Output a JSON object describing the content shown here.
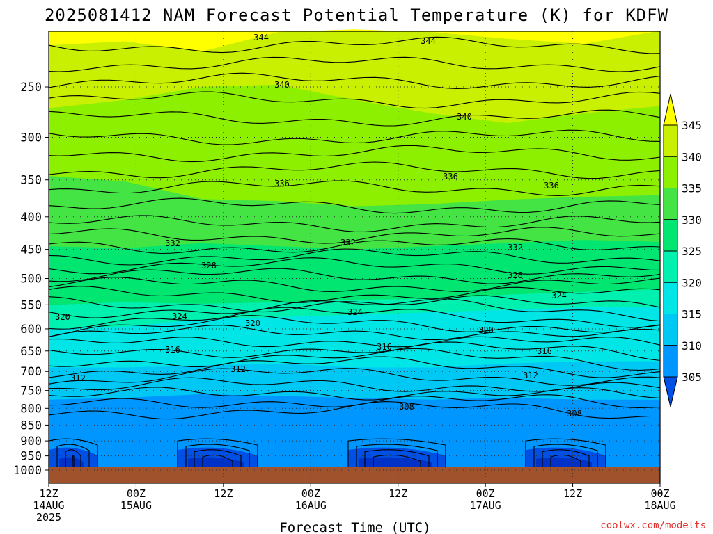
{
  "title": "2025081412 NAM Forecast Potential Temperature (K) for KDFW",
  "credit": "coolwx.com/modelts",
  "chart_data": {
    "type": "heatmap",
    "title": "2025081412 NAM Forecast Potential Temperature (K) for KDFW",
    "xlabel": "Forecast Time (UTC)",
    "ylabel": "",
    "y_axis": {
      "scale": "log-pressure",
      "unit": "hPa",
      "range": [
        1025,
        200
      ],
      "ticks": [
        250,
        300,
        350,
        400,
        450,
        500,
        550,
        600,
        650,
        700,
        750,
        800,
        850,
        900,
        950,
        1000
      ]
    },
    "x_axis": {
      "ticks": [
        {
          "line1": "12Z",
          "line2": "14AUG",
          "line3": "2025"
        },
        {
          "line1": "00Z",
          "line2": "15AUG",
          "line3": ""
        },
        {
          "line1": "12Z",
          "line2": "",
          "line3": ""
        },
        {
          "line1": "00Z",
          "line2": "16AUG",
          "line3": ""
        },
        {
          "line1": "12Z",
          "line2": "",
          "line3": ""
        },
        {
          "line1": "00Z",
          "line2": "17AUG",
          "line3": ""
        },
        {
          "line1": "12Z",
          "line2": "",
          "line3": ""
        },
        {
          "line1": "00Z",
          "line2": "18AUG",
          "line3": ""
        }
      ]
    },
    "grid": true,
    "colorbar": {
      "position": "right",
      "labels": [
        "345",
        "340",
        "335",
        "330",
        "325",
        "320",
        "315",
        "310",
        "305"
      ],
      "colors": [
        "#ffff00",
        "#c8f000",
        "#8cf000",
        "#44e444",
        "#00e670",
        "#00f0b0",
        "#00e6e6",
        "#00c8f5",
        "#0096ff",
        "#0050e6"
      ]
    },
    "fill_bands": [
      {
        "value": 346,
        "color": "#ffff00",
        "description_pressure_top": 200
      },
      {
        "value": 342,
        "color": "#c8f000"
      },
      {
        "value": 338,
        "color": "#8cf000"
      },
      {
        "value": 334,
        "color": "#44e444"
      },
      {
        "value": 330,
        "color": "#00e670"
      },
      {
        "value": 326,
        "color": "#00f0b0"
      },
      {
        "value": 322,
        "color": "#00e6e6"
      },
      {
        "value": 317,
        "color": "#00c8f5"
      },
      {
        "value": 312,
        "color": "#0096ff"
      },
      {
        "value": 307,
        "color": "#0050e6"
      }
    ],
    "contour_labels": [
      {
        "text": "344"
      },
      {
        "text": "344"
      },
      {
        "text": "340"
      },
      {
        "text": "340"
      },
      {
        "text": "336"
      },
      {
        "text": "336"
      },
      {
        "text": "336"
      },
      {
        "text": "332"
      },
      {
        "text": "332"
      },
      {
        "text": "332"
      },
      {
        "text": "328"
      },
      {
        "text": "328"
      },
      {
        "text": "324"
      },
      {
        "text": "324"
      },
      {
        "text": "324"
      },
      {
        "text": "320"
      },
      {
        "text": "320"
      },
      {
        "text": "320"
      },
      {
        "text": "316"
      },
      {
        "text": "316"
      },
      {
        "text": "316"
      },
      {
        "text": "312"
      },
      {
        "text": "312"
      },
      {
        "text": "312"
      },
      {
        "text": "308"
      },
      {
        "text": "308"
      }
    ],
    "ground_color": "#a0522d"
  }
}
